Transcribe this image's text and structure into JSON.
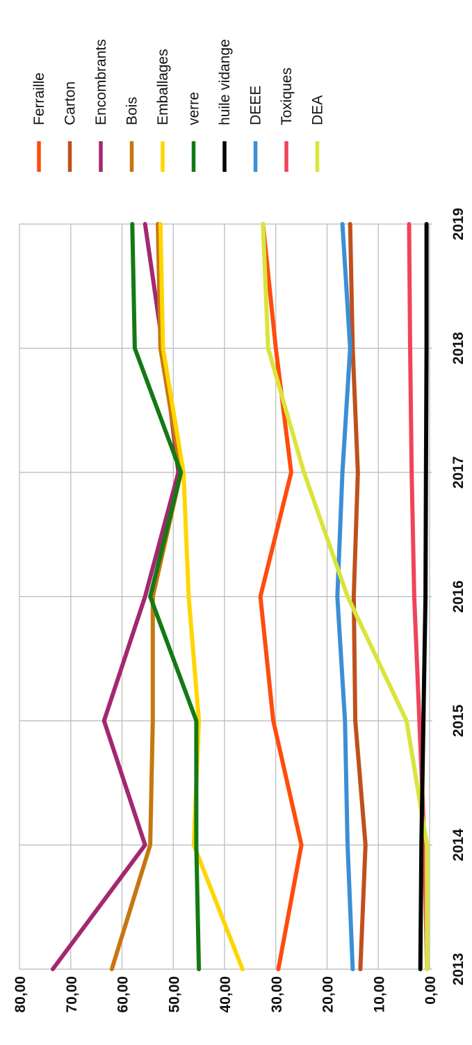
{
  "chart_data": {
    "type": "line",
    "title": "",
    "xlabel": "",
    "ylabel": "",
    "categories": [
      "2013",
      "2014",
      "2015",
      "2016",
      "2017",
      "2018",
      "2019"
    ],
    "y_tick_labels": [
      "0,00",
      "10,00",
      "20,00",
      "30,00",
      "40,00",
      "50,00",
      "60,00",
      "70,00",
      "80,00"
    ],
    "ylim": [
      0,
      80
    ],
    "grid": true,
    "legend_position": "right",
    "series": [
      {
        "name": "Ferraille",
        "color": "#ff4c0d",
        "values": [
          29.5,
          25,
          30.5,
          33,
          27,
          30,
          32.5
        ]
      },
      {
        "name": "Carton",
        "color": "#c0501c",
        "values": [
          13.5,
          12.5,
          14.5,
          14.8,
          14,
          15,
          15.5
        ]
      },
      {
        "name": "Encombrants",
        "color": "#a3286f",
        "values": [
          73.5,
          55.5,
          63.5,
          55.5,
          49,
          52,
          55.5
        ]
      },
      {
        "name": "Bois",
        "color": "#c8760f",
        "values": [
          62,
          54.5,
          54,
          54,
          48.5,
          52.5,
          53
        ]
      },
      {
        "name": "Emballages",
        "color": "#ffd500",
        "values": [
          36.5,
          46,
          45,
          47,
          48,
          52,
          52.5
        ]
      },
      {
        "name": "verre",
        "color": "#137a13",
        "values": [
          45,
          45.5,
          45.5,
          54.5,
          48.5,
          57.5,
          58
        ]
      },
      {
        "name": "huile vidange",
        "color": "#050505",
        "values": [
          1.8,
          1.6,
          1.2,
          0.8,
          0.7,
          0.6,
          0.6
        ]
      },
      {
        "name": "DEEE",
        "color": "#3b8fd6",
        "values": [
          15,
          16,
          16.5,
          18,
          17,
          15.5,
          17
        ]
      },
      {
        "name": "Toxiques",
        "color": "#f0445a",
        "values": [
          0.5,
          1.0,
          2.0,
          3.0,
          3.5,
          3.8,
          4.0
        ]
      },
      {
        "name": "DEA",
        "color": "#dbe43a",
        "values": [
          0.5,
          0.5,
          4.5,
          16,
          24.5,
          31.5,
          32.5
        ]
      }
    ]
  }
}
